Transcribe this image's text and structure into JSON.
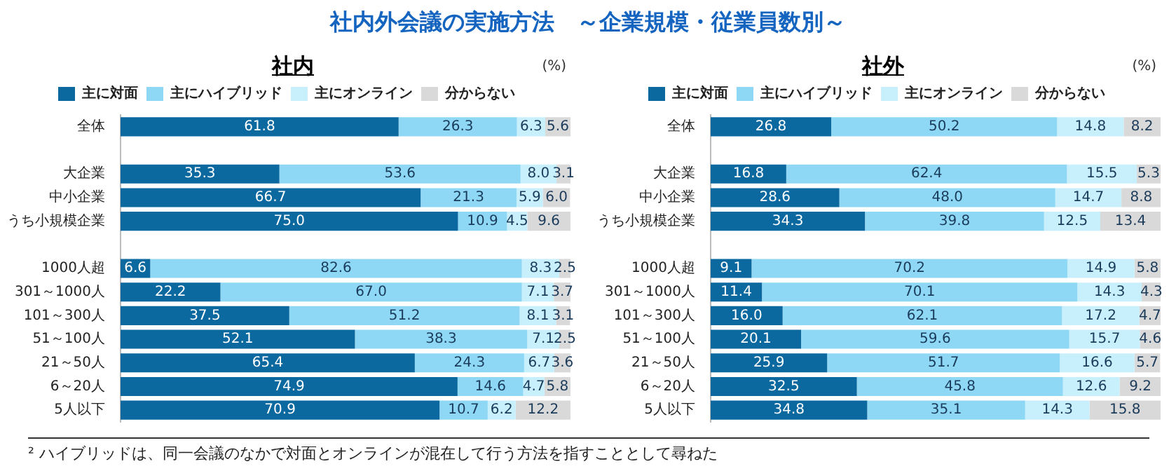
{
  "chart_data": [
    {
      "type": "bar",
      "orientation": "horizontal",
      "stacked": true,
      "title": "社内",
      "annotations": [
        "(%)",
        "社内外会議の実施方法　～企業規模・従業員数別～",
        "² ハイブリッドは、同一会議のなかで対面とオンラインが混在して行う方法を指すこととして尋ねた"
      ],
      "categories": [
        "全体",
        null,
        "大企業",
        "中小企業",
        "うち小規模企業",
        null,
        "1000人超",
        "301～1000人",
        "101～300人",
        "51～100人",
        "21～50人",
        "6～20人",
        "5人以下"
      ],
      "xlim": [
        0,
        100
      ],
      "tick_labels": "y",
      "grid": false,
      "legend": "top",
      "series": [
        {
          "name": "主に対面",
          "color": "#0b69a0",
          "values": [
            61.8,
            null,
            35.3,
            66.7,
            75.0,
            null,
            6.6,
            22.2,
            37.5,
            52.1,
            65.4,
            74.9,
            70.9
          ],
          "value_labels": [
            "61.8",
            null,
            "35.3",
            "66.7",
            "75.0",
            null,
            "6.6",
            "22.2",
            "37.5",
            "52.1",
            "65.4",
            "74.9",
            "70.9"
          ]
        },
        {
          "name": "主にハイブリッド",
          "color": "#8ed8f5",
          "values": [
            26.3,
            null,
            53.6,
            21.3,
            10.9,
            null,
            82.6,
            67.0,
            51.2,
            38.3,
            24.3,
            14.6,
            10.7
          ],
          "value_labels": [
            "26.3",
            null,
            "53.6",
            "21.3",
            "10.9",
            null,
            "82.6",
            "67.0",
            "51.2",
            "38.3",
            "24.3",
            "14.6",
            "10.7"
          ]
        },
        {
          "name": "主にオンライン",
          "color": "#c8f0fc",
          "values": [
            6.3,
            null,
            8.0,
            5.9,
            4.5,
            null,
            8.3,
            7.1,
            8.1,
            7.1,
            6.7,
            4.7,
            6.2
          ],
          "value_labels": [
            "6.3",
            null,
            "8.0",
            "5.9",
            "4.5",
            null,
            "8.3",
            "7.1",
            "8.1",
            "7.1",
            "6.7",
            "4.7",
            "6.2"
          ]
        },
        {
          "name": "分からない",
          "color": "#d9d9d9",
          "values": [
            5.6,
            null,
            3.1,
            6.0,
            9.6,
            null,
            2.5,
            3.7,
            3.1,
            2.5,
            3.6,
            5.8,
            12.2
          ],
          "value_labels": [
            "5.6",
            null,
            "3.1",
            "6.0",
            "9.6",
            null,
            "2.5",
            "3.7",
            "3.1",
            "2.5",
            "3.6",
            "5.8",
            "12.2"
          ]
        }
      ]
    },
    {
      "type": "bar",
      "orientation": "horizontal",
      "stacked": true,
      "title": "社外",
      "annotations": [
        "(%)"
      ],
      "categories": [
        "全体",
        null,
        "大企業",
        "中小企業",
        "うち小規模企業",
        null,
        "1000人超",
        "301～1000人",
        "101～300人",
        "51～100人",
        "21～50人",
        "6～20人",
        "5人以下"
      ],
      "xlim": [
        0,
        100
      ],
      "tick_labels": "y",
      "grid": false,
      "legend": "top",
      "series": [
        {
          "name": "主に対面",
          "color": "#0b69a0",
          "values": [
            26.8,
            null,
            16.8,
            28.6,
            34.3,
            null,
            9.1,
            11.4,
            16.0,
            20.1,
            25.9,
            32.5,
            34.8
          ],
          "value_labels": [
            "26.8",
            null,
            "16.8",
            "28.6",
            "34.3",
            null,
            "9.1",
            "11.4",
            "16.0",
            "20.1",
            "25.9",
            "32.5",
            "34.8"
          ]
        },
        {
          "name": "主にハイブリッド",
          "color": "#8ed8f5",
          "values": [
            50.2,
            null,
            62.4,
            48.0,
            39.8,
            null,
            70.2,
            70.1,
            62.1,
            59.6,
            51.7,
            45.8,
            35.1
          ],
          "value_labels": [
            "50.2",
            null,
            "62.4",
            "48.0",
            "39.8",
            null,
            "70.2",
            "70.1",
            "62.1",
            "59.6",
            "51.7",
            "45.8",
            "35.1"
          ]
        },
        {
          "name": "主にオンライン",
          "color": "#c8f0fc",
          "values": [
            14.8,
            null,
            15.5,
            14.7,
            12.5,
            null,
            14.9,
            14.3,
            17.2,
            15.7,
            16.6,
            12.6,
            14.3
          ],
          "value_labels": [
            "14.8",
            null,
            "15.5",
            "14.7",
            "12.5",
            null,
            "14.9",
            "14.3",
            "17.2",
            "15.7",
            "16.6",
            "12.6",
            "14.3"
          ]
        },
        {
          "name": "分からない",
          "color": "#d9d9d9",
          "values": [
            8.2,
            null,
            5.3,
            8.8,
            13.4,
            null,
            5.8,
            4.3,
            4.7,
            4.6,
            5.7,
            9.2,
            15.8
          ],
          "value_labels": [
            "8.2",
            null,
            "5.3",
            "8.8",
            "13.4",
            null,
            "5.8",
            "4.3",
            "4.7",
            "4.6",
            "5.7",
            "9.2",
            "15.8"
          ]
        }
      ]
    }
  ]
}
